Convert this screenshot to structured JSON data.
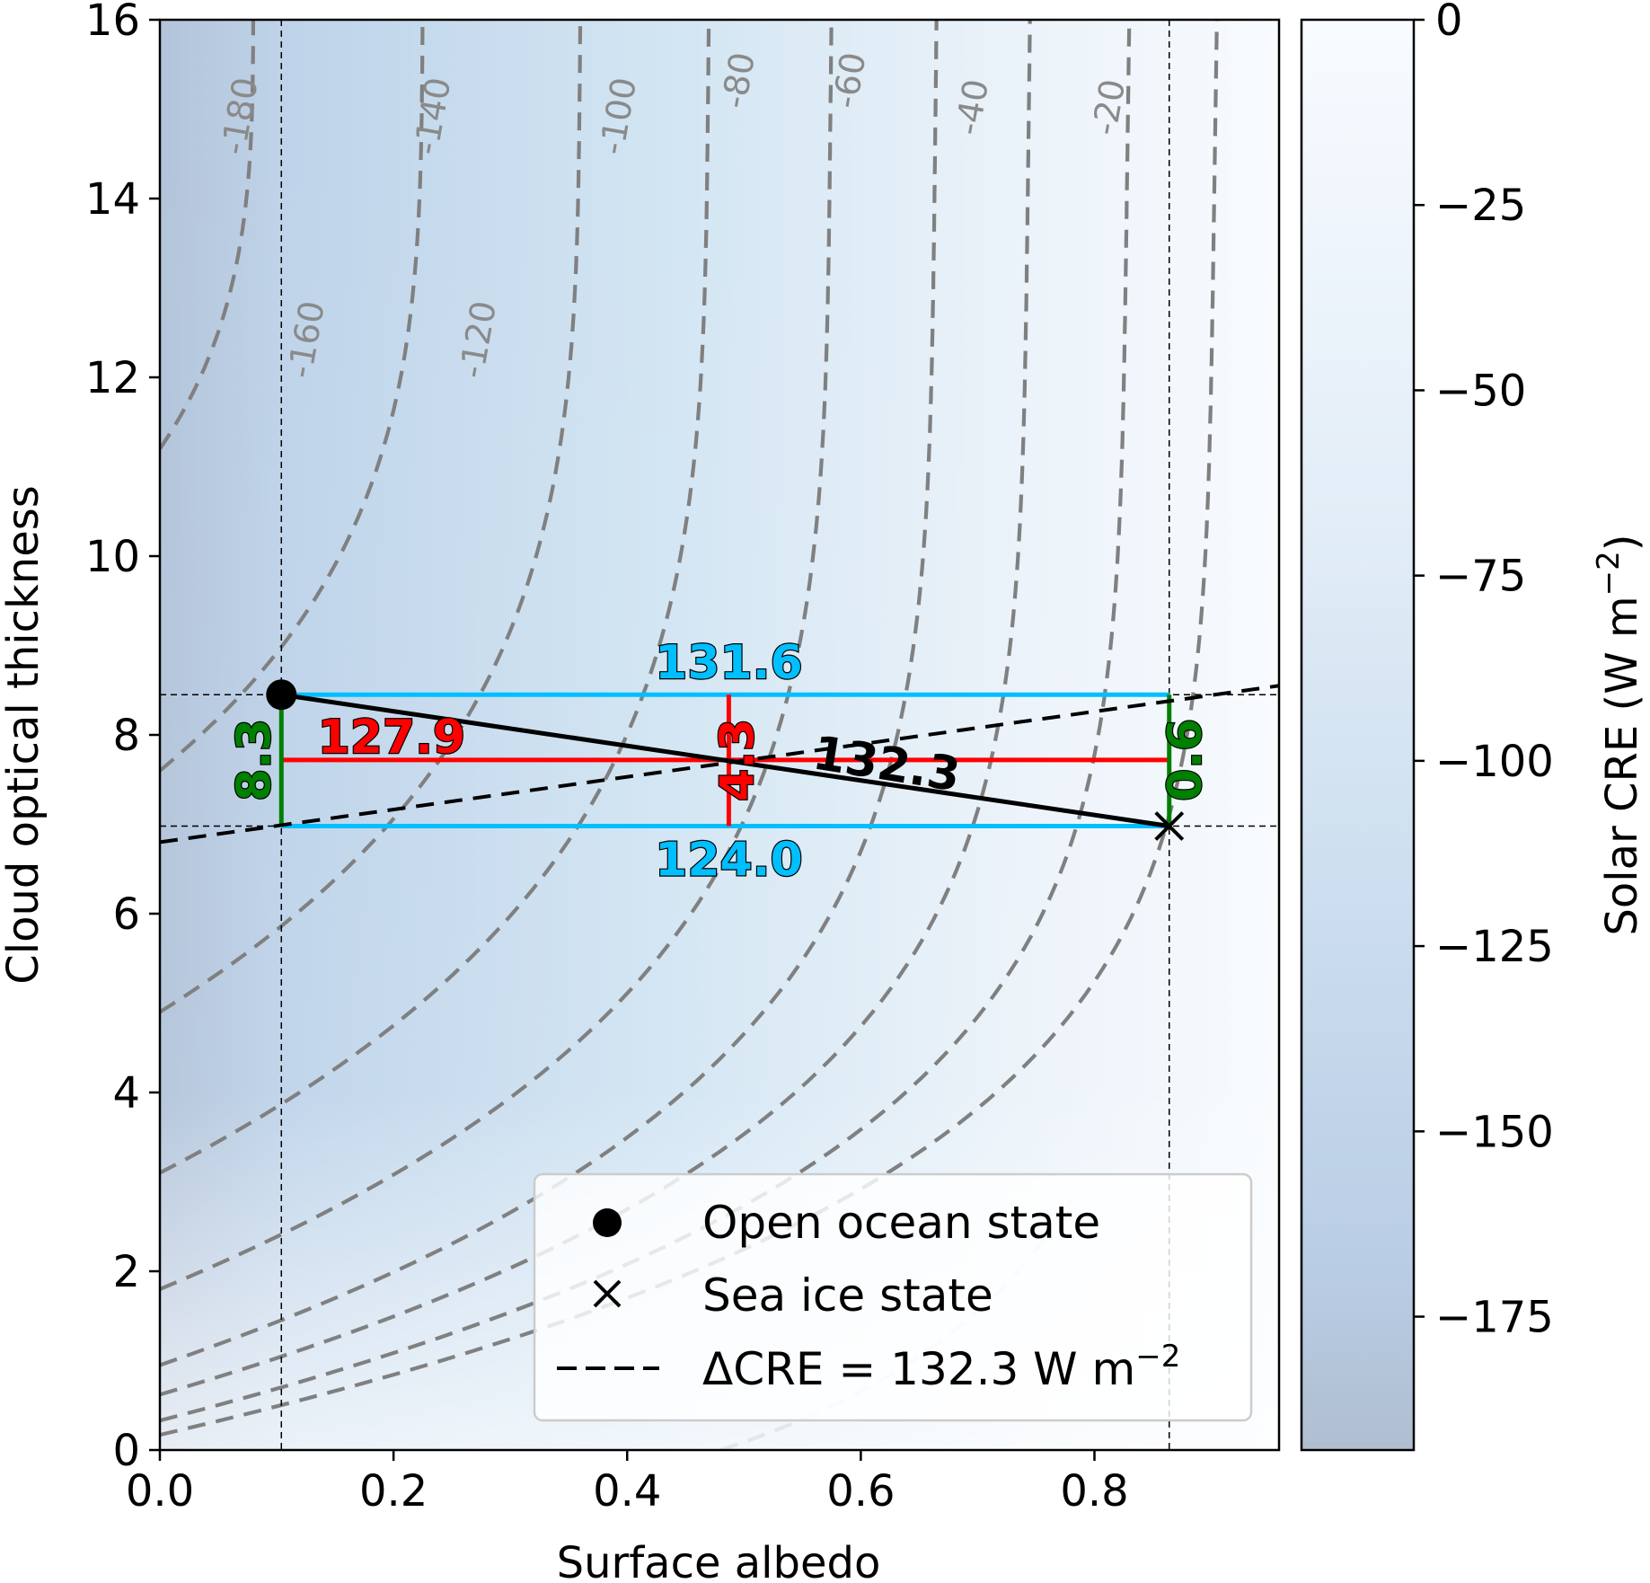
{
  "chart_data": {
    "type": "heatmap",
    "title": "",
    "xlabel": "Surface albedo",
    "ylabel": "Cloud optical thickness",
    "xlim": [
      0.0,
      0.958
    ],
    "ylim": [
      0,
      16
    ],
    "x_ticks": [
      "0.0",
      "0.2",
      "0.4",
      "0.6",
      "0.8"
    ],
    "y_ticks": [
      "0",
      "2",
      "4",
      "6",
      "8",
      "10",
      "12",
      "14",
      "16"
    ],
    "colorbar": {
      "label": "Solar CRE (W m",
      "label_exp": "−2",
      "label_close": ")",
      "range": [
        -193,
        0
      ],
      "ticks": [
        "0",
        "−25",
        "−50",
        "−75",
        "−100",
        "−125",
        "−150",
        "−175"
      ],
      "colors": [
        "#b0bed0",
        "#bcd3e9",
        "#cfe2f1",
        "#e4eff8",
        "#f7fbff"
      ]
    },
    "contours": {
      "style": "dashed",
      "color": "#808080",
      "levels": [
        "-180",
        "-160",
        "-140",
        "-120",
        "-100",
        "-80",
        "-60",
        "-40",
        "-20"
      ]
    },
    "points": {
      "open_ocean": {
        "x": 0.104,
        "y": 8.45,
        "marker": "circle"
      },
      "sea_ice": {
        "x": 0.864,
        "y": 6.98,
        "marker": "x"
      }
    },
    "decomposition": {
      "albedo_top": "131.6",
      "albedo_bottom": "124.0",
      "albedo_mid": "127.9",
      "cloud_left": "8.3",
      "cloud_right": "0.6",
      "cloud_mid": "4.3",
      "total": "132.3",
      "colors": {
        "albedo": "#00bfff",
        "albedo_mid": "#ff0000",
        "cloud": "#008000",
        "total": "#000000"
      }
    },
    "legend": {
      "position": "lower-right",
      "entries": [
        {
          "marker": "circle",
          "label": "Open ocean state"
        },
        {
          "marker": "x",
          "label": "Sea ice state"
        },
        {
          "marker": "dashed-line",
          "label": "ΔCRE = 132.3 W m",
          "label_exp": "−2"
        }
      ]
    }
  }
}
